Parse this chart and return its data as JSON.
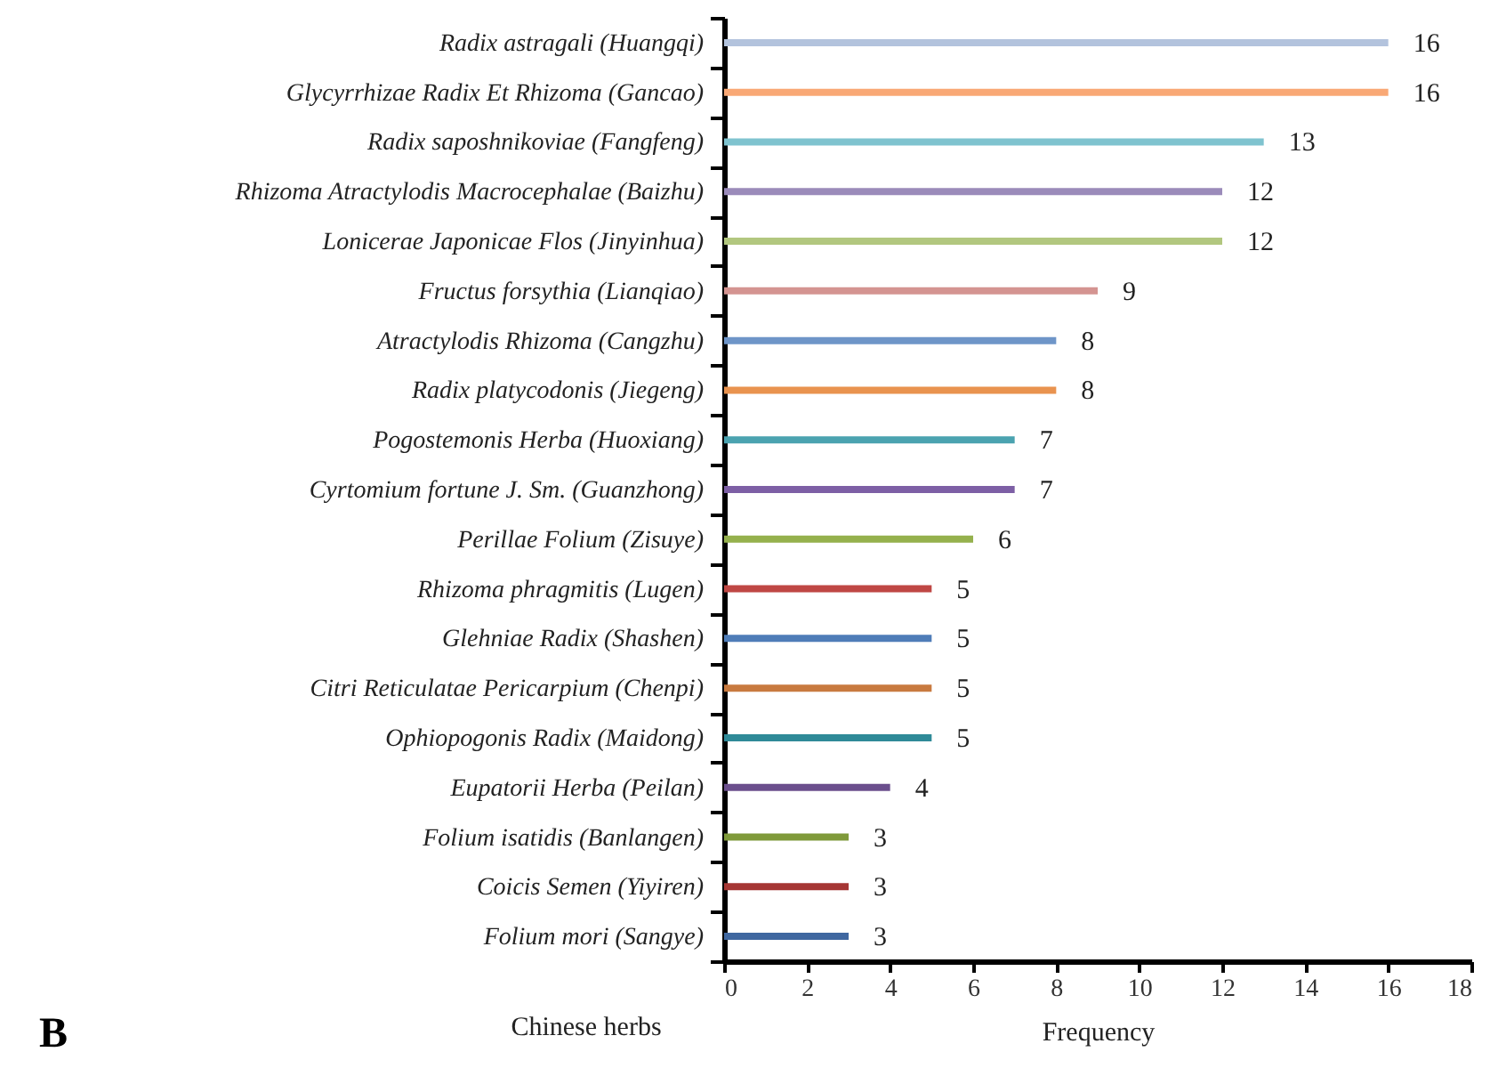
{
  "chart_data": {
    "type": "bar",
    "orientation": "horizontal",
    "xlabel": "Frequency",
    "ylabel": "Chinese herbs",
    "annotations": [
      "B"
    ],
    "categories": [
      "Radix astragali (Huangqi)",
      "Glycyrrhizae Radix Et Rhizoma (Gancao)",
      "Radix saposhnikoviae (Fangfeng)",
      "Rhizoma Atractylodis Macrocephalae (Baizhu)",
      "Lonicerae Japonicae Flos (Jinyinhua)",
      "Fructus forsythia (Lianqiao)",
      "Atractylodis Rhizoma (Cangzhu)",
      "Radix platycodonis (Jiegeng)",
      "Pogostemonis Herba (Huoxiang)",
      "Cyrtomium fortune J. Sm. (Guanzhong)",
      "Perillae Folium (Zisuye)",
      "Rhizoma phragmitis (Lugen)",
      "Glehniae Radix (Shashen)",
      "Citri Reticulatae Pericarpium (Chenpi)",
      "Ophiopogonis Radix (Maidong)",
      "Eupatorii Herba (Peilan)",
      "Folium isatidis (Banlangen)",
      "Coicis Semen (Yiyiren)",
      "Folium mori (Sangye)"
    ],
    "values": [
      16,
      16,
      13,
      12,
      12,
      9,
      8,
      8,
      7,
      7,
      6,
      5,
      5,
      5,
      5,
      4,
      3,
      3,
      3
    ],
    "colors": [
      "#b3c3dd",
      "#f9a875",
      "#7fc3cf",
      "#9b8bba",
      "#b2c77f",
      "#d49491",
      "#6e95c8",
      "#e9934f",
      "#4ba3b0",
      "#7d5fa5",
      "#95b14d",
      "#bf4744",
      "#4f7db8",
      "#c87a3f",
      "#2f8a98",
      "#6b4f8d",
      "#7f9a3a",
      "#a53634",
      "#3f67a0"
    ],
    "xlim": [
      0,
      18
    ],
    "xticks": [
      0,
      2,
      4,
      6,
      8,
      10,
      12,
      14,
      16,
      18
    ],
    "data_labels": true,
    "grid": false
  }
}
